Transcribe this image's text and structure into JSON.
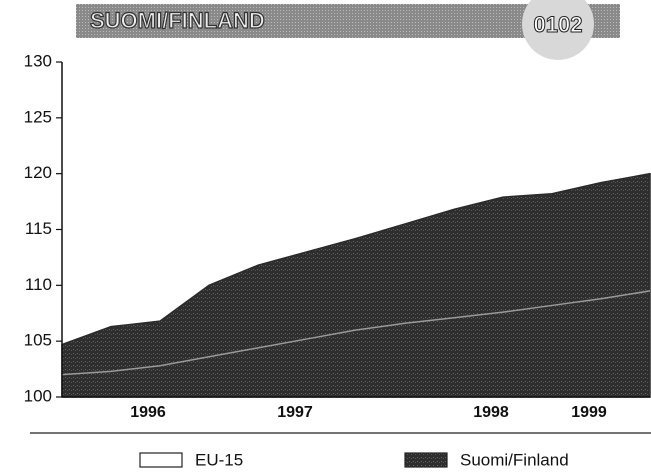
{
  "chart_data": {
    "type": "area",
    "title": "SUOMI/FINLAND",
    "badge": "0102",
    "categories": [
      null,
      null,
      "1996",
      null,
      null,
      "1997",
      null,
      null,
      null,
      "1998",
      null,
      "1999",
      null
    ],
    "series": [
      {
        "name": "EU-15",
        "color": "#9a9a9a",
        "fill": "#ffffff",
        "values": [
          102,
          102.3,
          102.8,
          103.6,
          104.4,
          105.2,
          106,
          106.6,
          107.1,
          107.6,
          108.2,
          108.8,
          109.5
        ]
      },
      {
        "name": "Suomi/Finland",
        "color": "#2a2a2a",
        "fill": "#2e2e2e",
        "values": [
          104.7,
          106.3,
          106.8,
          110,
          111.8,
          113,
          114.2,
          115.5,
          116.8,
          117.9,
          118.2,
          119.2,
          120
        ]
      }
    ],
    "ylim": [
      100,
      130
    ],
    "yticks": [
      100,
      105,
      110,
      115,
      120,
      125,
      130
    ]
  }
}
